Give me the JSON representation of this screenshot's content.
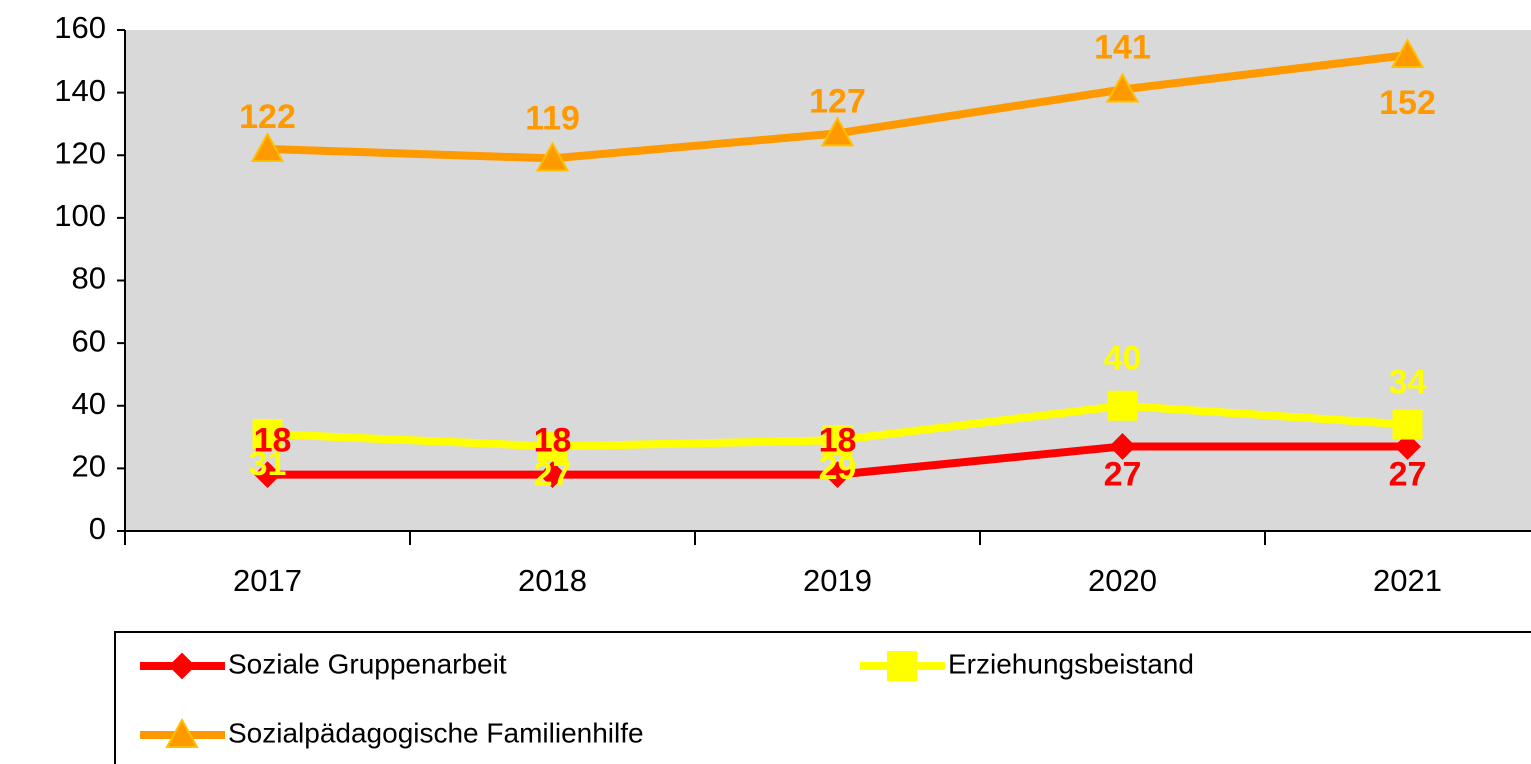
{
  "chart_data": {
    "type": "line",
    "categories": [
      "2017",
      "2018",
      "2019",
      "2020",
      "2021"
    ],
    "series": [
      {
        "name": "Soziale Gruppenarbeit",
        "color": "#ff0000",
        "marker": "diamond",
        "values": [
          18,
          18,
          18,
          27,
          27
        ]
      },
      {
        "name": "Erziehungsbeistand",
        "color": "#ffff00",
        "marker": "square",
        "values": [
          31,
          27,
          29,
          40,
          34
        ]
      },
      {
        "name": "Sozialpädagogische Familienhilfe",
        "color": "#ff9900",
        "marker": "triangle",
        "values": [
          122,
          119,
          127,
          141,
          152
        ]
      }
    ],
    "ylim": [
      0,
      160
    ],
    "yticks": [
      0,
      20,
      40,
      60,
      80,
      100,
      120,
      140,
      160
    ],
    "plot_background": "#d9d9d9",
    "data_labels": true
  }
}
